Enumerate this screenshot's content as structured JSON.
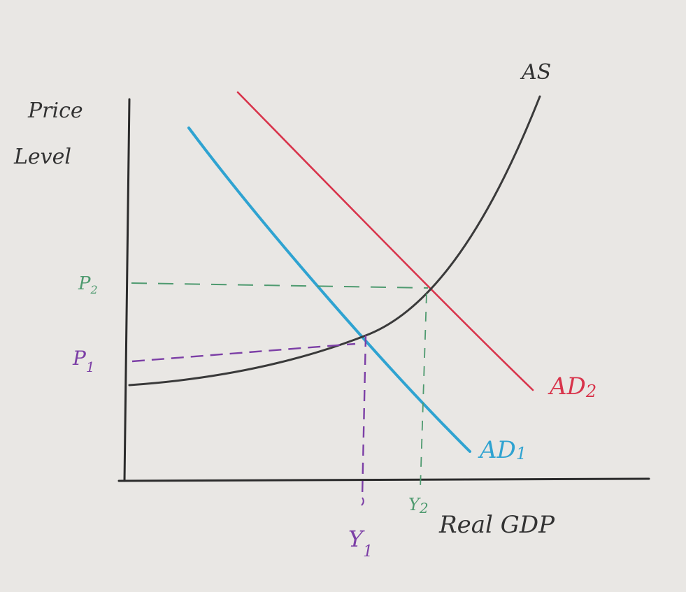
{
  "labels": {
    "y_axis": [
      "Price",
      "Level"
    ],
    "x_axis": "Real GDP",
    "as": "AS",
    "ad1": "AD",
    "ad1_sub": "1",
    "ad2": "AD",
    "ad2_sub": "2",
    "p1": "P",
    "p1_sub": "1",
    "p2": "P",
    "p2_sub": "2",
    "y1": "Y",
    "y1_sub": "1",
    "y2": "Y",
    "y2_sub": "2"
  },
  "colors": {
    "paper": "#e9e7e4",
    "axis": "#2b2b2b",
    "as_curve": "#3a3a3a",
    "ad1": "#2fa3d1",
    "ad2": "#d8344b",
    "eq1_guides": "#7c3fa6",
    "eq2_guides": "#4e9a6f"
  }
}
